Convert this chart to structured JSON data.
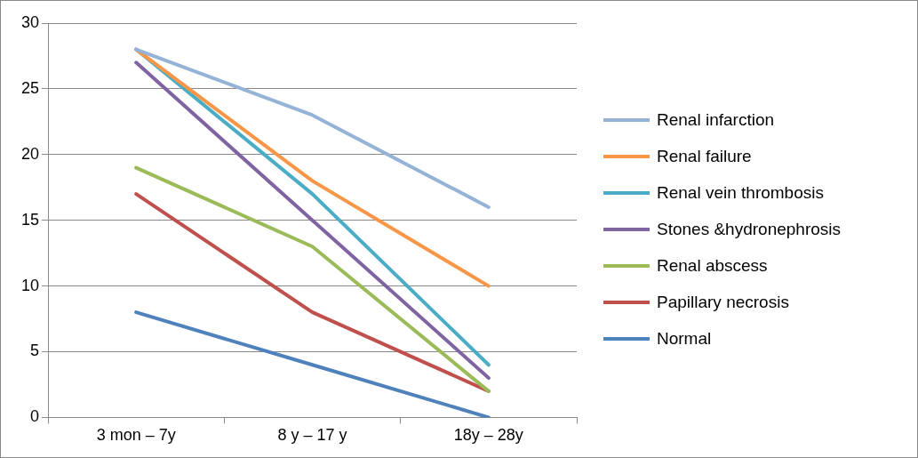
{
  "chart_data": {
    "type": "line",
    "categories": [
      "3 mon – 7y",
      "8 y – 17 y",
      "18y – 28y"
    ],
    "ylim": [
      0,
      30
    ],
    "yticks": [
      0,
      5,
      10,
      15,
      20,
      25,
      30
    ],
    "grid": "y",
    "legend": "right",
    "marker": "none",
    "line_style": "solid",
    "series": [
      {
        "name": "Renal infarction",
        "color": "#95b3d7",
        "values": [
          28,
          23,
          16
        ]
      },
      {
        "name": "Renal failure",
        "color": "#f79646",
        "values": [
          28,
          18,
          10
        ]
      },
      {
        "name": "Renal vein thrombosis",
        "color": "#4bacc6",
        "values": [
          28,
          17,
          4
        ]
      },
      {
        "name": "Stones &hydronephrosis",
        "color": "#8064a2",
        "values": [
          27,
          15,
          3
        ]
      },
      {
        "name": "Renal abscess",
        "color": "#9bbb59",
        "values": [
          19,
          13,
          2
        ]
      },
      {
        "name": "Papillary necrosis",
        "color": "#c0504d",
        "values": [
          17,
          8,
          2
        ]
      },
      {
        "name": "Normal",
        "color": "#4f81bd",
        "values": [
          8,
          4,
          0
        ]
      }
    ]
  }
}
